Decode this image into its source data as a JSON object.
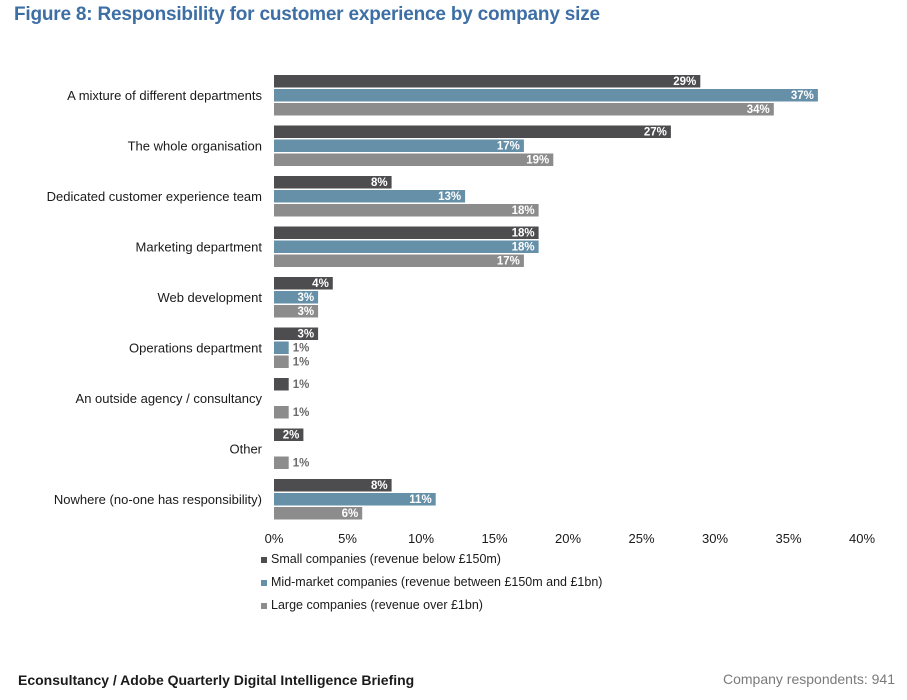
{
  "header": {
    "title": "Figure 8: Responsibility for customer experience by company size"
  },
  "footer": {
    "source": "Econsultancy / Adobe Quarterly Digital Intelligence Briefing",
    "respondents": "Company respondents: 941"
  },
  "colors": {
    "small": "#4d4d4f",
    "mid": "#6590a8",
    "large": "#8c8c8c",
    "title": "#3d6fa5"
  },
  "chart_data": {
    "type": "bar",
    "orientation": "horizontal",
    "title": "Figure 8: Responsibility for customer experience by company size",
    "categories": [
      "A mixture of different departments",
      "The whole organisation",
      "Dedicated customer experience team",
      "Marketing department",
      "Web development",
      "Operations department",
      "An outside agency / consultancy",
      "Other",
      "Nowhere (no-one has responsibility)"
    ],
    "series": [
      {
        "name": "Small companies (revenue below £150m)",
        "values": [
          29,
          27,
          8,
          18,
          4,
          3,
          1,
          2,
          8
        ]
      },
      {
        "name": "Mid-market companies (revenue between £150m and £1bn)",
        "values": [
          37,
          17,
          13,
          18,
          3,
          1,
          null,
          null,
          11
        ]
      },
      {
        "name": "Large companies (revenue over £1bn)",
        "values": [
          34,
          19,
          18,
          17,
          3,
          1,
          1,
          1,
          6
        ]
      }
    ],
    "xlim": [
      0,
      40
    ],
    "xticks": [
      0,
      5,
      10,
      15,
      20,
      25,
      30,
      35,
      40
    ],
    "tick_suffix": "%",
    "value_suffix": "%",
    "legend_position": "bottom"
  }
}
